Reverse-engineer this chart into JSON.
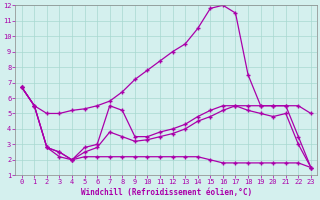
{
  "xlabel": "Windchill (Refroidissement éolien,°C)",
  "background_color": "#d4f0ee",
  "line_color": "#aa00aa",
  "xlim": [
    -0.5,
    23.5
  ],
  "ylim": [
    1,
    12
  ],
  "yticks": [
    1,
    2,
    3,
    4,
    5,
    6,
    7,
    8,
    9,
    10,
    11,
    12
  ],
  "xticks": [
    0,
    1,
    2,
    3,
    4,
    5,
    6,
    7,
    8,
    9,
    10,
    11,
    12,
    13,
    14,
    15,
    16,
    17,
    18,
    19,
    20,
    21,
    22,
    23
  ],
  "series_high": {
    "x": [
      0,
      1,
      2,
      3,
      4,
      5,
      6,
      7,
      8,
      9,
      10,
      11,
      12,
      13,
      14,
      15,
      16,
      17,
      18,
      19,
      20,
      21,
      22,
      23
    ],
    "y": [
      6.7,
      5.5,
      5.0,
      5.0,
      5.2,
      5.3,
      5.5,
      5.8,
      6.4,
      7.2,
      7.8,
      8.4,
      9.0,
      9.5,
      10.5,
      11.8,
      12.0,
      11.5,
      7.5,
      5.5,
      5.5,
      5.5,
      5.5,
      5.0
    ]
  },
  "series_mid_high": {
    "x": [
      0,
      1,
      2,
      3,
      4,
      5,
      6,
      7,
      8,
      9,
      10,
      11,
      12,
      13,
      14,
      15,
      16,
      17,
      18,
      19,
      20,
      21,
      22,
      23
    ],
    "y": [
      6.7,
      5.5,
      2.8,
      2.5,
      2.0,
      2.8,
      3.0,
      5.5,
      5.2,
      3.5,
      3.5,
      3.8,
      4.0,
      4.3,
      4.8,
      5.2,
      5.5,
      5.5,
      5.5,
      5.5,
      5.5,
      5.5,
      3.5,
      1.5
    ]
  },
  "series_mid_low": {
    "x": [
      0,
      1,
      2,
      3,
      4,
      5,
      6,
      7,
      8,
      9,
      10,
      11,
      12,
      13,
      14,
      15,
      16,
      17,
      18,
      19,
      20,
      21,
      22,
      23
    ],
    "y": [
      6.7,
      5.5,
      2.8,
      2.5,
      2.0,
      2.5,
      2.8,
      3.8,
      3.5,
      3.2,
      3.3,
      3.5,
      3.7,
      4.0,
      4.5,
      4.8,
      5.2,
      5.5,
      5.2,
      5.0,
      4.8,
      5.0,
      3.0,
      1.5
    ]
  },
  "series_low": {
    "x": [
      0,
      1,
      2,
      3,
      4,
      5,
      6,
      7,
      8,
      9,
      10,
      11,
      12,
      13,
      14,
      15,
      16,
      17,
      18,
      19,
      20,
      21,
      22,
      23
    ],
    "y": [
      6.7,
      5.5,
      2.8,
      2.2,
      2.0,
      2.2,
      2.2,
      2.2,
      2.2,
      2.2,
      2.2,
      2.2,
      2.2,
      2.2,
      2.2,
      2.0,
      1.8,
      1.8,
      1.8,
      1.8,
      1.8,
      1.8,
      1.8,
      1.5
    ]
  }
}
